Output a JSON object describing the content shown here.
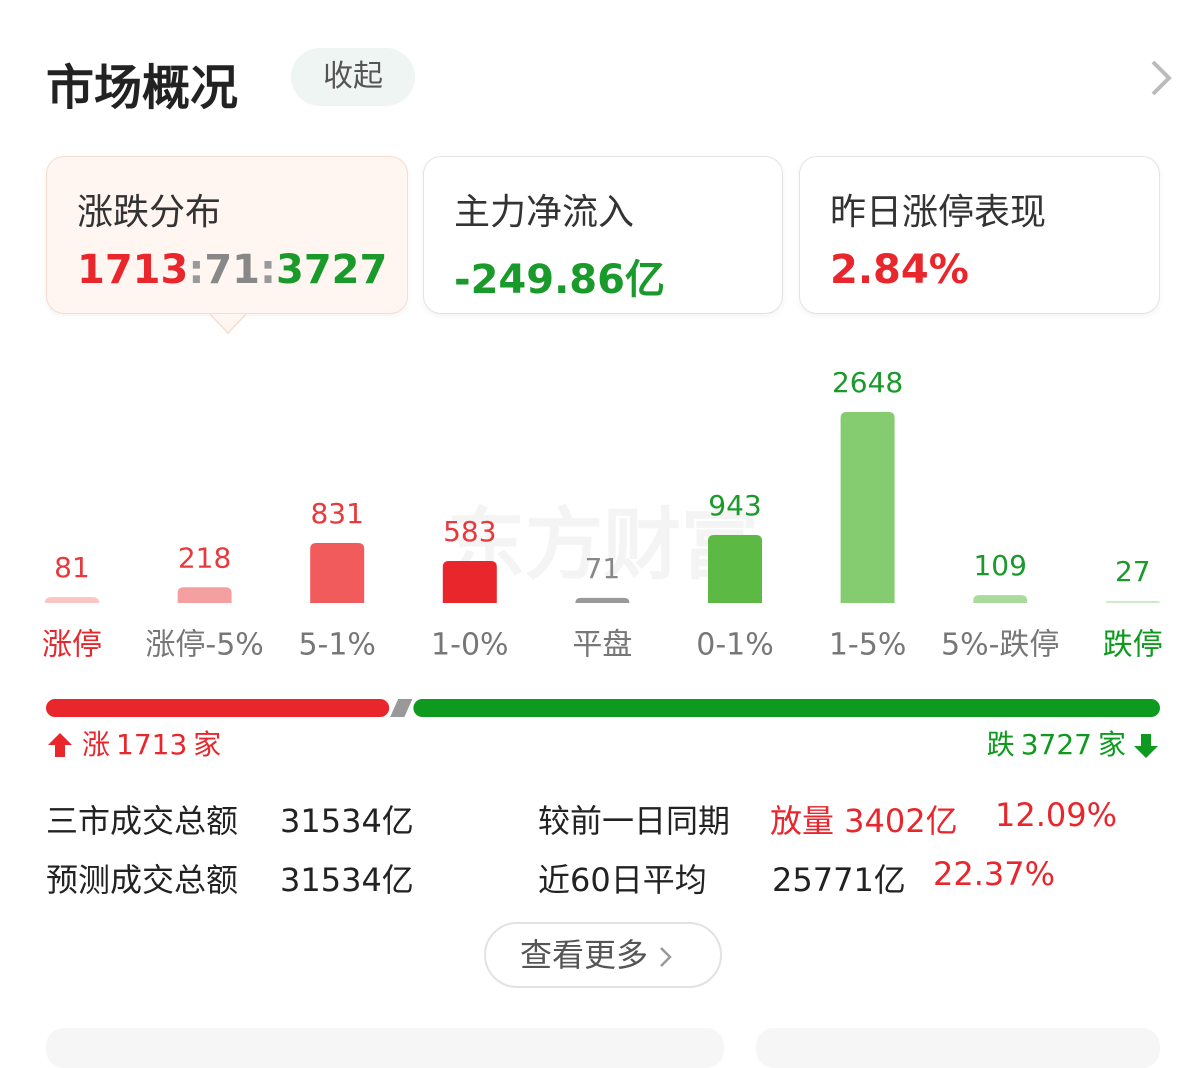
{
  "header": {
    "title": "市场概况",
    "collapse_button": "收起"
  },
  "cards": [
    {
      "title": "涨跌分布"
    },
    {
      "title": "主力净流入",
      "value": "-249.86亿"
    },
    {
      "title": "昨日涨停表现",
      "value": "2.84%"
    }
  ],
  "breadth": {
    "up_label": "涨",
    "up": 1713,
    "flat": 71,
    "down_label": "跌",
    "down": 3727,
    "unit": "家",
    "separator": ":",
    "up_color": "#e8262c",
    "flat_color": "#999999",
    "down_color": "#0e9a1e"
  },
  "chart_data": {
    "type": "bar",
    "watermark": "东方财富",
    "categories": [
      "涨停",
      "涨停-5%",
      "5-1%",
      "1-0%",
      "平盘",
      "0-1%",
      "1-5%",
      "5%-跌停",
      "跌停"
    ],
    "values": [
      81,
      218,
      831,
      583,
      71,
      943,
      2648,
      109,
      27
    ],
    "colors": [
      "#f9c6c6",
      "#f4a0a0",
      "#f25b5b",
      "#e8262c",
      "#999999",
      "#5bb944",
      "#84cc6f",
      "#a9dc9c",
      "#cdebc6"
    ],
    "label_colors": [
      "#e8393c",
      "#e8393c",
      "#e8393c",
      "#e8393c",
      "#888888",
      "#1a9a2a",
      "#1a9a2a",
      "#1a9a2a",
      "#1a9a2a"
    ],
    "category_colors": [
      "#e8262c",
      "#777777",
      "#777777",
      "#777777",
      "#777777",
      "#777777",
      "#777777",
      "#777777",
      "#0e9a1e"
    ]
  },
  "stats": {
    "rows": [
      [
        "三市成交总额",
        "31534亿",
        "较前一日同期",
        "放量 3402亿",
        "12.09%"
      ],
      [
        "预测成交总额",
        "31534亿",
        "近60日平均",
        "25771亿",
        "22.37%"
      ]
    ]
  },
  "more_button": "查看更多"
}
